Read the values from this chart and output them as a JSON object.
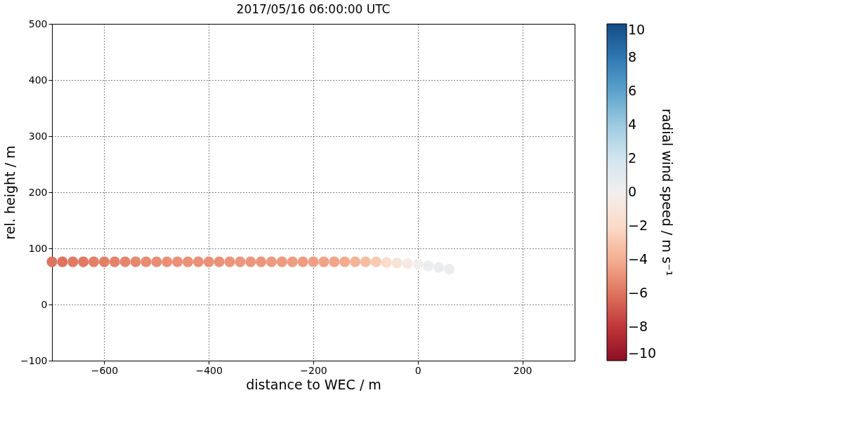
{
  "chart_data": {
    "type": "scatter",
    "title": "2017/05/16 06:00:00 UTC",
    "xlabel": "distance to WEC / m",
    "ylabel": "rel. height / m",
    "clabel": "radial wind speed / m s⁻¹",
    "x": [
      -700,
      -680,
      -660,
      -640,
      -620,
      -600,
      -580,
      -560,
      -540,
      -520,
      -500,
      -480,
      -460,
      -440,
      -420,
      -400,
      -380,
      -360,
      -340,
      -320,
      -300,
      -280,
      -260,
      -240,
      -220,
      -200,
      -180,
      -160,
      -140,
      -120,
      -100,
      -80,
      -60,
      -40,
      -20,
      0,
      20,
      40,
      60
    ],
    "values": [
      76,
      76,
      76,
      76,
      76,
      76,
      76,
      76,
      76,
      76,
      76,
      76,
      76,
      76,
      76,
      76,
      76,
      76,
      76,
      76,
      76,
      76,
      76,
      76,
      76,
      76,
      76,
      76,
      76,
      76,
      76,
      76,
      75,
      74,
      73,
      72,
      69,
      66,
      63
    ],
    "cvalues": [
      -6,
      -6,
      -5.8,
      -5.8,
      -5.6,
      -5.6,
      -5.5,
      -5.4,
      -5.3,
      -5.2,
      -5.1,
      -5,
      -5,
      -5,
      -5,
      -5,
      -5,
      -4.9,
      -4.8,
      -4.8,
      -4.8,
      -4.7,
      -4.7,
      -4.6,
      -4.6,
      -4.5,
      -4.4,
      -4.3,
      -4.1,
      -3.8,
      -3.4,
      -2.8,
      -2,
      -1.2,
      -0.6,
      0,
      0.4,
      0.5,
      0.5
    ],
    "clim": [
      -10,
      10
    ],
    "cticks": [
      -10,
      -8,
      -6,
      -4,
      -2,
      0,
      2,
      4,
      6,
      8,
      10
    ],
    "xlim": [
      -700,
      300
    ],
    "xticks": [
      -600,
      -400,
      -200,
      0,
      200
    ],
    "ylim": [
      -100,
      500
    ],
    "yticks": [
      -100,
      0,
      100,
      200,
      300,
      400,
      500
    ],
    "grid": true
  }
}
